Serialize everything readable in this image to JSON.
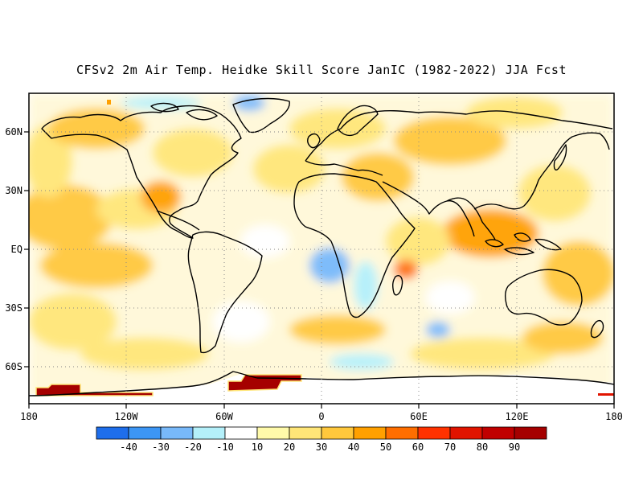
{
  "title": "CFSv2 2m Air Temp. Heidke Skill Score JanIC (1982-2022) JJA Fcst",
  "map": {
    "lon_ticks": [
      "180",
      "120W",
      "60W",
      "0",
      "60E",
      "120E",
      "180"
    ],
    "lat_ticks": [
      "60N",
      "30N",
      "EQ",
      "30S",
      "60S"
    ],
    "lon_values": [
      -180,
      -120,
      -60,
      0,
      60,
      120,
      180
    ],
    "lat_values": [
      60,
      30,
      0,
      -30,
      -60
    ],
    "lon_range": [
      -180,
      180
    ],
    "lat_range": [
      -77,
      80
    ],
    "grid": "dotted"
  },
  "colorbar": {
    "labels": [
      "-40",
      "-30",
      "-20",
      "-10",
      "10",
      "20",
      "30",
      "40",
      "50",
      "60",
      "70",
      "80",
      "90"
    ],
    "colors": [
      "#1e6eeb",
      "#3c96f5",
      "#78b9fa",
      "#b4f0fa",
      "#ffffff",
      "#fffaaa",
      "#ffe678",
      "#ffc83c",
      "#ffa000",
      "#ff6e00",
      "#ff3200",
      "#e11400",
      "#c00000",
      "#a50000"
    ]
  }
}
